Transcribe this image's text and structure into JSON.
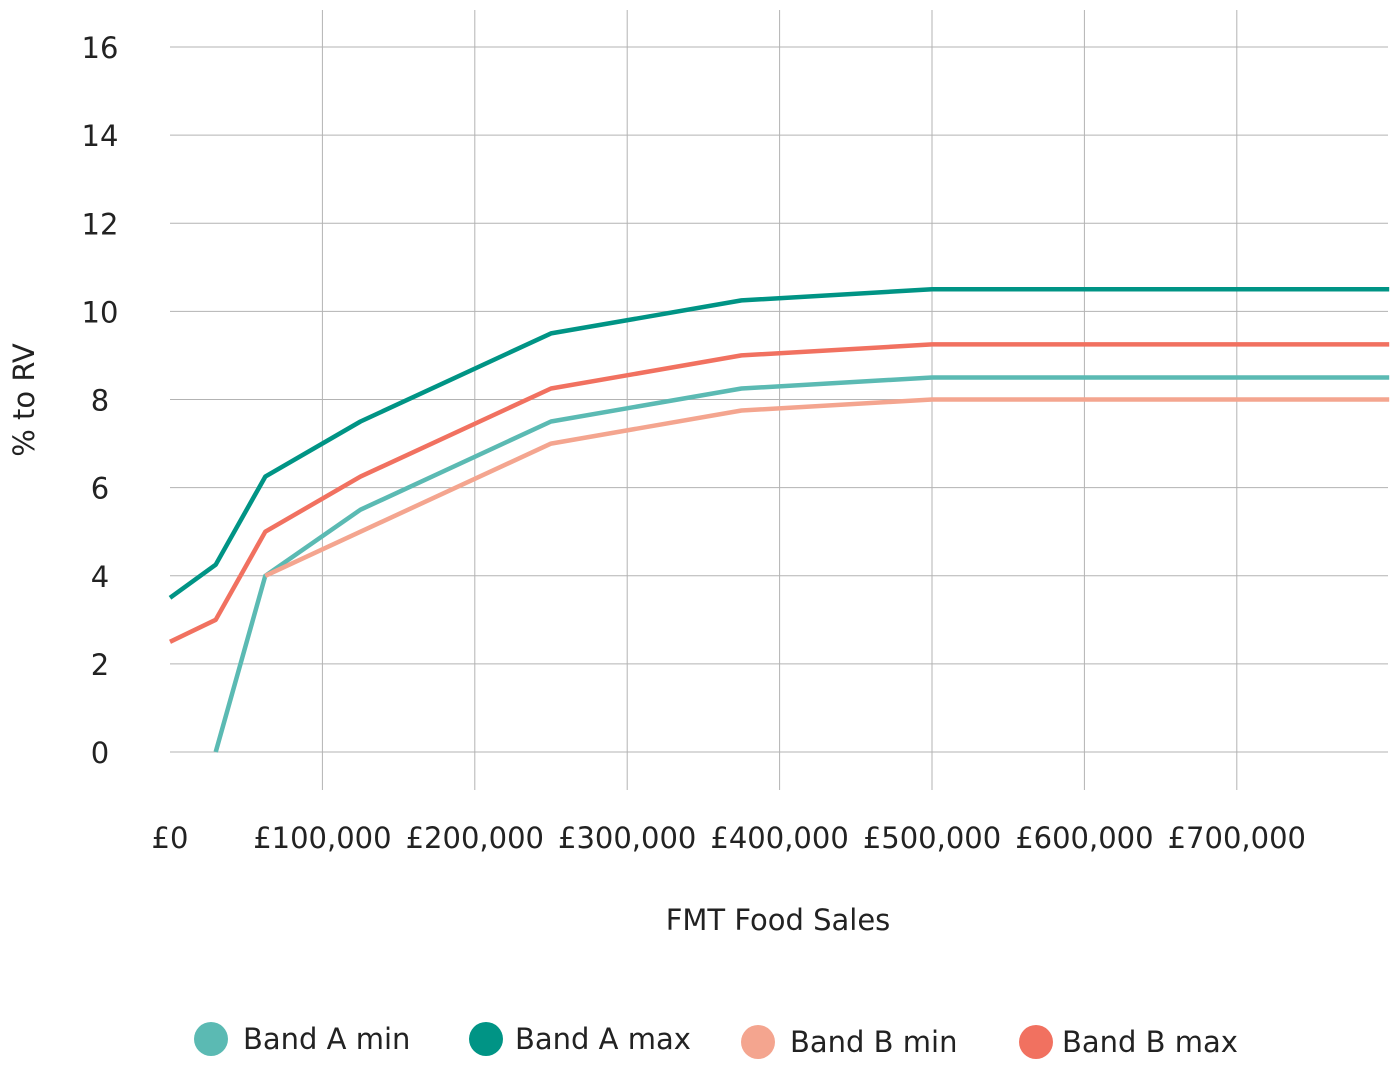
{
  "chart_data": {
    "type": "line",
    "title": "",
    "xlabel": "FMT Food Sales",
    "ylabel": "% to RV",
    "xlim": [
      0,
      800000
    ],
    "ylim": [
      0,
      16
    ],
    "x_ticks": [
      0,
      100000,
      200000,
      300000,
      400000,
      500000,
      600000,
      700000
    ],
    "x_tick_labels": [
      "£0",
      "£100,000",
      "£200,000",
      "£300,000",
      "£400,000",
      "£500,000",
      "£600,000",
      "£700,000"
    ],
    "y_ticks": [
      0,
      2,
      4,
      6,
      8,
      10,
      12,
      14,
      16
    ],
    "y_tick_labels": [
      "0",
      "2",
      "4",
      "6",
      "8",
      "10",
      "12",
      "14",
      "16"
    ],
    "grid": true,
    "legend_position": "bottom",
    "series": [
      {
        "name": "Band A min",
        "color": "#5bbab3",
        "x": [
          30000,
          62500,
          125000,
          250000,
          375000,
          500000,
          800000
        ],
        "y": [
          0,
          4,
          5.5,
          7.5,
          8.25,
          8.5,
          8.5
        ]
      },
      {
        "name": "Band A max",
        "color": "#009485",
        "x": [
          0,
          30000,
          62500,
          125000,
          250000,
          375000,
          500000,
          800000
        ],
        "y": [
          3.5,
          4.25,
          6.25,
          7.5,
          9.5,
          10.25,
          10.5,
          10.5
        ]
      },
      {
        "name": "Band B min",
        "color": "#f4a58f",
        "x": [
          62500,
          125000,
          250000,
          375000,
          500000,
          800000
        ],
        "y": [
          4,
          5,
          7,
          7.75,
          8,
          8
        ]
      },
      {
        "name": "Band B max",
        "color": "#f17160",
        "x": [
          0,
          30000,
          62500,
          125000,
          250000,
          375000,
          500000,
          800000
        ],
        "y": [
          2.5,
          3,
          5,
          6.25,
          8.25,
          9,
          9.25,
          9.25
        ]
      }
    ]
  }
}
